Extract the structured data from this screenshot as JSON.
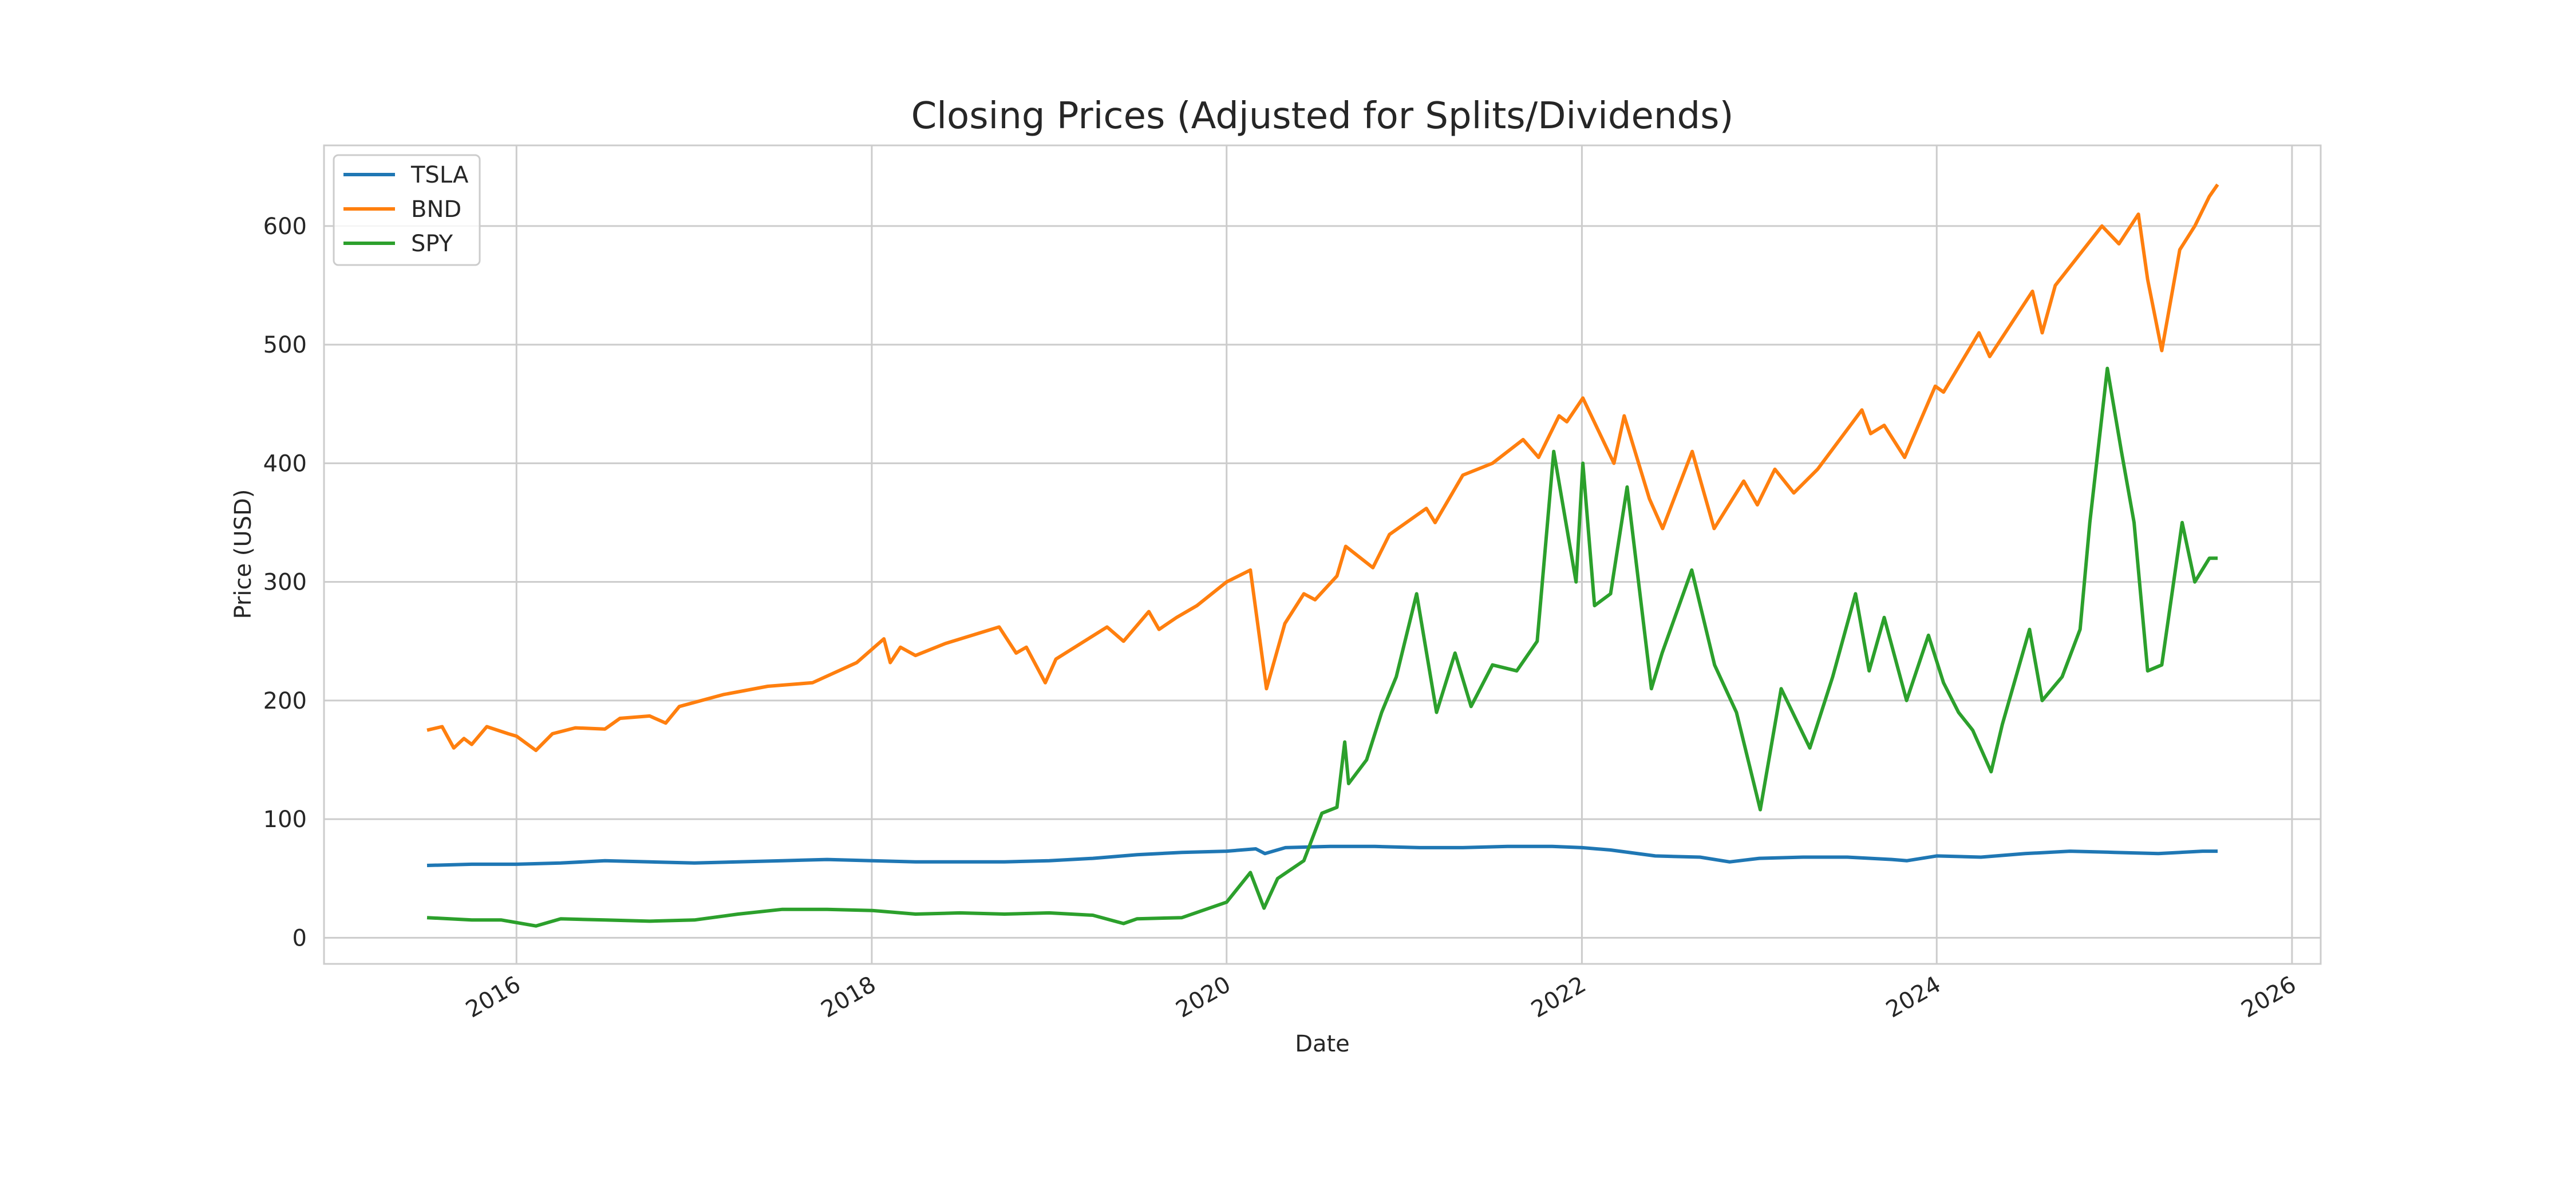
{
  "chart_data": {
    "type": "line",
    "title": "Closing Prices (Adjusted for Splits/Dividends)",
    "xlabel": "Date",
    "ylabel": "Price (USD)",
    "x_ticks": [
      "2016",
      "2018",
      "2020",
      "2022",
      "2024",
      "2026"
    ],
    "y_ticks": [
      "0",
      "100",
      "200",
      "300",
      "400",
      "500",
      "600"
    ],
    "xlim": [
      "2014-12-01",
      "2026-03-01"
    ],
    "ylim": [
      -22,
      668
    ],
    "grid": true,
    "legend_position": "upper-left",
    "series": [
      {
        "name": "TSLA",
        "color": "#1f77b4",
        "points": [
          [
            "2015-07-01",
            61
          ],
          [
            "2015-10-01",
            62
          ],
          [
            "2016-01-01",
            62
          ],
          [
            "2016-04-01",
            63
          ],
          [
            "2016-07-01",
            65
          ],
          [
            "2016-10-01",
            64
          ],
          [
            "2017-01-01",
            63
          ],
          [
            "2017-04-01",
            64
          ],
          [
            "2017-07-01",
            65
          ],
          [
            "2017-10-01",
            66
          ],
          [
            "2018-01-01",
            65
          ],
          [
            "2018-04-01",
            64
          ],
          [
            "2018-07-01",
            64
          ],
          [
            "2018-10-01",
            64
          ],
          [
            "2019-01-01",
            65
          ],
          [
            "2019-04-01",
            67
          ],
          [
            "2019-07-01",
            70
          ],
          [
            "2019-10-01",
            72
          ],
          [
            "2020-01-01",
            73
          ],
          [
            "2020-03-01",
            75
          ],
          [
            "2020-03-20",
            71
          ],
          [
            "2020-05-01",
            76
          ],
          [
            "2020-08-01",
            77
          ],
          [
            "2020-11-01",
            77
          ],
          [
            "2021-02-01",
            76
          ],
          [
            "2021-05-01",
            76
          ],
          [
            "2021-08-01",
            77
          ],
          [
            "2021-11-01",
            77
          ],
          [
            "2022-01-01",
            76
          ],
          [
            "2022-03-01",
            74
          ],
          [
            "2022-06-01",
            69
          ],
          [
            "2022-09-01",
            68
          ],
          [
            "2022-11-01",
            64
          ],
          [
            "2023-01-01",
            67
          ],
          [
            "2023-04-01",
            68
          ],
          [
            "2023-07-01",
            68
          ],
          [
            "2023-10-01",
            66
          ],
          [
            "2023-11-01",
            65
          ],
          [
            "2024-01-01",
            69
          ],
          [
            "2024-04-01",
            68
          ],
          [
            "2024-07-01",
            71
          ],
          [
            "2024-10-01",
            73
          ],
          [
            "2025-01-01",
            72
          ],
          [
            "2025-04-01",
            71
          ],
          [
            "2025-07-01",
            73
          ],
          [
            "2025-08-01",
            73
          ]
        ]
      },
      {
        "name": "BND",
        "color": "#ff7f0e",
        "points": [
          [
            "2015-07-01",
            175
          ],
          [
            "2015-08-01",
            178
          ],
          [
            "2015-08-25",
            160
          ],
          [
            "2015-09-15",
            168
          ],
          [
            "2015-10-01",
            163
          ],
          [
            "2015-11-01",
            178
          ],
          [
            "2015-12-15",
            172
          ],
          [
            "2016-01-01",
            170
          ],
          [
            "2016-02-10",
            158
          ],
          [
            "2016-03-15",
            172
          ],
          [
            "2016-05-01",
            177
          ],
          [
            "2016-07-01",
            176
          ],
          [
            "2016-08-01",
            185
          ],
          [
            "2016-10-01",
            187
          ],
          [
            "2016-11-03",
            181
          ],
          [
            "2016-12-01",
            195
          ],
          [
            "2017-03-01",
            205
          ],
          [
            "2017-06-01",
            212
          ],
          [
            "2017-09-01",
            215
          ],
          [
            "2017-12-01",
            232
          ],
          [
            "2018-01-26",
            252
          ],
          [
            "2018-02-08",
            232
          ],
          [
            "2018-03-01",
            245
          ],
          [
            "2018-04-01",
            238
          ],
          [
            "2018-06-01",
            248
          ],
          [
            "2018-09-20",
            262
          ],
          [
            "2018-10-25",
            240
          ],
          [
            "2018-11-15",
            245
          ],
          [
            "2018-12-24",
            215
          ],
          [
            "2019-01-15",
            235
          ],
          [
            "2019-04-30",
            262
          ],
          [
            "2019-06-03",
            250
          ],
          [
            "2019-07-25",
            275
          ],
          [
            "2019-08-15",
            260
          ],
          [
            "2019-09-20",
            270
          ],
          [
            "2019-11-01",
            280
          ],
          [
            "2020-01-01",
            300
          ],
          [
            "2020-02-19",
            310
          ],
          [
            "2020-03-23",
            210
          ],
          [
            "2020-04-30",
            265
          ],
          [
            "2020-06-08",
            290
          ],
          [
            "2020-07-01",
            285
          ],
          [
            "2020-08-15",
            305
          ],
          [
            "2020-09-02",
            330
          ],
          [
            "2020-10-28",
            312
          ],
          [
            "2020-12-01",
            340
          ],
          [
            "2021-02-15",
            362
          ],
          [
            "2021-03-05",
            350
          ],
          [
            "2021-05-01",
            390
          ],
          [
            "2021-07-01",
            400
          ],
          [
            "2021-09-02",
            420
          ],
          [
            "2021-10-04",
            405
          ],
          [
            "2021-11-15",
            440
          ],
          [
            "2021-12-01",
            435
          ],
          [
            "2022-01-03",
            455
          ],
          [
            "2022-03-08",
            400
          ],
          [
            "2022-03-29",
            440
          ],
          [
            "2022-05-20",
            370
          ],
          [
            "2022-06-16",
            345
          ],
          [
            "2022-08-16",
            410
          ],
          [
            "2022-09-30",
            345
          ],
          [
            "2022-11-30",
            385
          ],
          [
            "2022-12-28",
            365
          ],
          [
            "2023-02-02",
            395
          ],
          [
            "2023-03-13",
            375
          ],
          [
            "2023-05-01",
            395
          ],
          [
            "2023-07-31",
            445
          ],
          [
            "2023-08-18",
            425
          ],
          [
            "2023-09-15",
            432
          ],
          [
            "2023-10-27",
            405
          ],
          [
            "2023-12-29",
            465
          ],
          [
            "2024-01-15",
            460
          ],
          [
            "2024-03-28",
            510
          ],
          [
            "2024-04-19",
            490
          ],
          [
            "2024-07-16",
            545
          ],
          [
            "2024-08-05",
            510
          ],
          [
            "2024-09-01",
            550
          ],
          [
            "2024-12-06",
            600
          ],
          [
            "2025-01-10",
            585
          ],
          [
            "2025-02-19",
            610
          ],
          [
            "2025-03-10",
            555
          ],
          [
            "2025-04-08",
            495
          ],
          [
            "2025-05-15",
            580
          ],
          [
            "2025-06-15",
            600
          ],
          [
            "2025-07-15",
            625
          ],
          [
            "2025-08-01",
            635
          ]
        ]
      },
      {
        "name": "SPY",
        "color": "#2ca02c",
        "points": [
          [
            "2015-07-01",
            17
          ],
          [
            "2015-10-01",
            15
          ],
          [
            "2015-12-01",
            15
          ],
          [
            "2016-02-10",
            10
          ],
          [
            "2016-04-01",
            16
          ],
          [
            "2016-07-01",
            15
          ],
          [
            "2016-10-01",
            14
          ],
          [
            "2017-01-01",
            15
          ],
          [
            "2017-04-01",
            20
          ],
          [
            "2017-07-01",
            24
          ],
          [
            "2017-10-01",
            24
          ],
          [
            "2018-01-01",
            23
          ],
          [
            "2018-04-01",
            20
          ],
          [
            "2018-07-01",
            21
          ],
          [
            "2018-10-01",
            20
          ],
          [
            "2019-01-01",
            21
          ],
          [
            "2019-04-01",
            19
          ],
          [
            "2019-06-03",
            12
          ],
          [
            "2019-07-01",
            16
          ],
          [
            "2019-10-01",
            17
          ],
          [
            "2020-01-01",
            30
          ],
          [
            "2020-02-19",
            55
          ],
          [
            "2020-03-18",
            25
          ],
          [
            "2020-04-15",
            50
          ],
          [
            "2020-06-08",
            65
          ],
          [
            "2020-07-15",
            105
          ],
          [
            "2020-08-15",
            110
          ],
          [
            "2020-08-31",
            165
          ],
          [
            "2020-09-08",
            130
          ],
          [
            "2020-10-15",
            150
          ],
          [
            "2020-11-15",
            190
          ],
          [
            "2020-12-15",
            220
          ],
          [
            "2021-01-26",
            290
          ],
          [
            "2021-03-08",
            190
          ],
          [
            "2021-04-15",
            240
          ],
          [
            "2021-05-18",
            195
          ],
          [
            "2021-07-01",
            230
          ],
          [
            "2021-08-20",
            225
          ],
          [
            "2021-10-01",
            250
          ],
          [
            "2021-11-04",
            410
          ],
          [
            "2021-12-20",
            300
          ],
          [
            "2022-01-03",
            400
          ],
          [
            "2022-01-27",
            280
          ],
          [
            "2022-03-01",
            290
          ],
          [
            "2022-04-04",
            380
          ],
          [
            "2022-05-24",
            210
          ],
          [
            "2022-06-15",
            240
          ],
          [
            "2022-08-15",
            310
          ],
          [
            "2022-10-01",
            230
          ],
          [
            "2022-11-15",
            190
          ],
          [
            "2023-01-03",
            108
          ],
          [
            "2023-02-15",
            210
          ],
          [
            "2023-04-15",
            160
          ],
          [
            "2023-06-01",
            220
          ],
          [
            "2023-07-18",
            290
          ],
          [
            "2023-08-15",
            225
          ],
          [
            "2023-09-15",
            270
          ],
          [
            "2023-10-31",
            200
          ],
          [
            "2023-12-15",
            255
          ],
          [
            "2024-01-15",
            215
          ],
          [
            "2024-02-15",
            190
          ],
          [
            "2024-03-15",
            175
          ],
          [
            "2024-04-22",
            140
          ],
          [
            "2024-05-15",
            180
          ],
          [
            "2024-07-10",
            260
          ],
          [
            "2024-08-05",
            200
          ],
          [
            "2024-09-15",
            220
          ],
          [
            "2024-10-22",
            260
          ],
          [
            "2024-11-11",
            350
          ],
          [
            "2024-12-17",
            480
          ],
          [
            "2025-01-15",
            410
          ],
          [
            "2025-02-10",
            350
          ],
          [
            "2025-03-10",
            225
          ],
          [
            "2025-04-08",
            230
          ],
          [
            "2025-05-20",
            350
          ],
          [
            "2025-06-15",
            300
          ],
          [
            "2025-07-15",
            320
          ],
          [
            "2025-08-01",
            320
          ]
        ]
      }
    ]
  }
}
